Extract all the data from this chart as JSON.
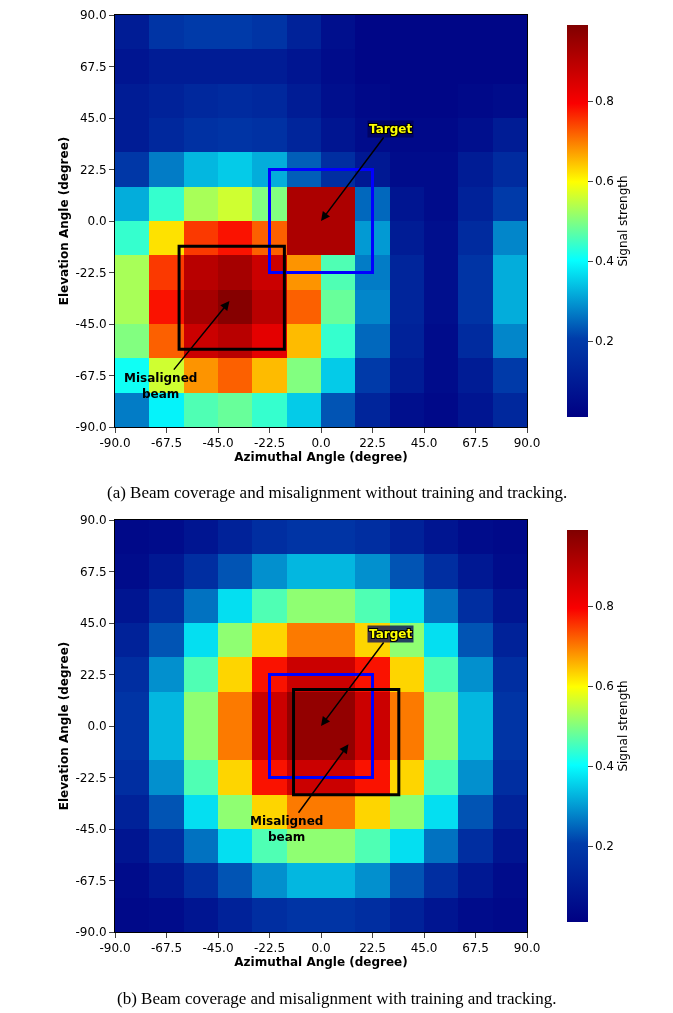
{
  "chart_data": [
    {
      "type": "heatmap",
      "xlabel": "Azimuthal Angle (degree)",
      "ylabel": "Elevation Angle (degree)",
      "clabel": "Signal strength",
      "x": [
        -82.5,
        -67.5,
        -52.5,
        -37.5,
        -22.5,
        -7.5,
        7.5,
        22.5,
        37.5,
        52.5,
        67.5,
        82.5
      ],
      "y": [
        82.5,
        67.5,
        52.5,
        37.5,
        22.5,
        7.5,
        -7.5,
        -22.5,
        -37.5,
        -52.5,
        -67.5,
        -82.5
      ],
      "cells": [
        [
          0.1,
          0.18,
          0.2,
          0.2,
          0.18,
          0.12,
          0.06,
          0.03,
          0.03,
          0.03,
          0.03,
          0.03
        ],
        [
          0.08,
          0.1,
          0.1,
          0.1,
          0.1,
          0.08,
          0.05,
          0.03,
          0.03,
          0.03,
          0.03,
          0.03
        ],
        [
          0.1,
          0.12,
          0.14,
          0.15,
          0.14,
          0.1,
          0.06,
          0.04,
          0.03,
          0.03,
          0.04,
          0.05
        ],
        [
          0.1,
          0.14,
          0.17,
          0.18,
          0.17,
          0.13,
          0.08,
          0.05,
          0.04,
          0.04,
          0.06,
          0.1
        ],
        [
          0.19,
          0.27,
          0.33,
          0.35,
          0.32,
          0.24,
          0.16,
          0.09,
          0.05,
          0.05,
          0.1,
          0.15
        ],
        [
          0.32,
          0.44,
          0.53,
          0.56,
          0.5,
          0.92,
          0.92,
          0.25,
          0.08,
          0.05,
          0.12,
          0.2
        ],
        [
          0.44,
          0.62,
          0.75,
          0.78,
          0.72,
          0.92,
          0.92,
          0.3,
          0.1,
          0.06,
          0.15,
          0.28
        ],
        [
          0.53,
          0.75,
          0.9,
          0.93,
          0.87,
          0.68,
          0.46,
          0.27,
          0.13,
          0.06,
          0.18,
          0.32
        ],
        [
          0.53,
          0.78,
          0.93,
          0.98,
          0.9,
          0.72,
          0.48,
          0.28,
          0.13,
          0.06,
          0.18,
          0.32
        ],
        [
          0.5,
          0.72,
          0.87,
          0.9,
          0.83,
          0.65,
          0.44,
          0.25,
          0.12,
          0.05,
          0.15,
          0.28
        ],
        [
          0.41,
          0.56,
          0.68,
          0.72,
          0.65,
          0.5,
          0.35,
          0.2,
          0.1,
          0.05,
          0.1,
          0.2
        ],
        [
          0.27,
          0.39,
          0.46,
          0.48,
          0.44,
          0.35,
          0.23,
          0.13,
          0.06,
          0.04,
          0.08,
          0.14
        ]
      ],
      "clim": [
        0.01,
        0.99
      ],
      "cticks": [
        0.2,
        0.4,
        0.6,
        0.8
      ],
      "xlim": [
        -90,
        90
      ],
      "ylim": [
        -90,
        90
      ],
      "xticks": [
        {
          "value": -90,
          "label": "-90.0"
        },
        {
          "value": -67.5,
          "label": "-67.5"
        },
        {
          "value": -45,
          "label": "-45.0"
        },
        {
          "value": -22.5,
          "label": "-22.5"
        },
        {
          "value": 0,
          "label": "0.0"
        },
        {
          "value": 22.5,
          "label": "22.5"
        },
        {
          "value": 45,
          "label": "45.0"
        },
        {
          "value": 67.5,
          "label": "67.5"
        },
        {
          "value": 90,
          "label": "90.0"
        }
      ],
      "yticks": [
        {
          "value": -90,
          "label": "-90.0"
        },
        {
          "value": -67.5,
          "label": "-67.5"
        },
        {
          "value": -45,
          "label": "-45.0"
        },
        {
          "value": -22.5,
          "label": "-22.5"
        },
        {
          "value": 0,
          "label": "0.0"
        },
        {
          "value": 22.5,
          "label": "22.5"
        },
        {
          "value": 45,
          "label": "45.0"
        },
        {
          "value": 67.5,
          "label": "67.5"
        },
        {
          "value": 90,
          "label": "90.0"
        }
      ],
      "annotations": [
        "Target",
        "Misaligned\nbeam",
        "(a) Beam coverage and misalignment without training and tracking."
      ]
    },
    {
      "type": "heatmap",
      "xlabel": "Azimuthal Angle (degree)",
      "ylabel": "Elevation Angle (degree)",
      "clabel": "Signal strength",
      "x": [
        -82.5,
        -67.5,
        -52.5,
        -37.5,
        -22.5,
        -7.5,
        7.5,
        22.5,
        37.5,
        52.5,
        67.5,
        82.5
      ],
      "y": [
        82.5,
        67.5,
        52.5,
        37.5,
        22.5,
        7.5,
        -7.5,
        -22.5,
        -37.5,
        -52.5,
        -67.5,
        -82.5
      ],
      "cells": [
        [
          0.04,
          0.05,
          0.08,
          0.12,
          0.16,
          0.18,
          0.18,
          0.16,
          0.12,
          0.08,
          0.05,
          0.04
        ],
        [
          0.05,
          0.09,
          0.16,
          0.23,
          0.29,
          0.33,
          0.33,
          0.29,
          0.23,
          0.16,
          0.09,
          0.05
        ],
        [
          0.08,
          0.16,
          0.26,
          0.37,
          0.46,
          0.51,
          0.51,
          0.46,
          0.37,
          0.26,
          0.16,
          0.08
        ],
        [
          0.12,
          0.23,
          0.37,
          0.51,
          0.63,
          0.7,
          0.7,
          0.63,
          0.51,
          0.37,
          0.23,
          0.12
        ],
        [
          0.16,
          0.29,
          0.46,
          0.63,
          0.78,
          0.87,
          0.87,
          0.78,
          0.63,
          0.46,
          0.29,
          0.16
        ],
        [
          0.18,
          0.33,
          0.51,
          0.7,
          0.87,
          0.96,
          0.96,
          0.87,
          0.7,
          0.51,
          0.33,
          0.18
        ],
        [
          0.18,
          0.33,
          0.51,
          0.7,
          0.87,
          0.96,
          0.96,
          0.87,
          0.7,
          0.51,
          0.33,
          0.18
        ],
        [
          0.16,
          0.29,
          0.46,
          0.63,
          0.78,
          0.87,
          0.87,
          0.78,
          0.63,
          0.46,
          0.29,
          0.16
        ],
        [
          0.12,
          0.23,
          0.37,
          0.51,
          0.63,
          0.7,
          0.7,
          0.63,
          0.51,
          0.37,
          0.23,
          0.12
        ],
        [
          0.08,
          0.16,
          0.26,
          0.37,
          0.46,
          0.51,
          0.51,
          0.46,
          0.37,
          0.26,
          0.16,
          0.08
        ],
        [
          0.05,
          0.09,
          0.16,
          0.23,
          0.29,
          0.33,
          0.33,
          0.29,
          0.23,
          0.16,
          0.09,
          0.05
        ],
        [
          0.04,
          0.05,
          0.08,
          0.12,
          0.16,
          0.18,
          0.18,
          0.16,
          0.12,
          0.08,
          0.05,
          0.04
        ]
      ],
      "clim": [
        0.01,
        0.99
      ],
      "cticks": [
        0.2,
        0.4,
        0.6,
        0.8
      ],
      "xlim": [
        -90,
        90
      ],
      "ylim": [
        -90,
        90
      ],
      "xticks": [
        {
          "value": -90,
          "label": "-90.0"
        },
        {
          "value": -67.5,
          "label": "-67.5"
        },
        {
          "value": -45,
          "label": "-45.0"
        },
        {
          "value": -22.5,
          "label": "-22.5"
        },
        {
          "value": 0,
          "label": "0.0"
        },
        {
          "value": 22.5,
          "label": "22.5"
        },
        {
          "value": 45,
          "label": "45.0"
        },
        {
          "value": 67.5,
          "label": "67.5"
        },
        {
          "value": 90,
          "label": "90.0"
        }
      ],
      "yticks": [
        {
          "value": -90,
          "label": "-90.0"
        },
        {
          "value": -67.5,
          "label": "-67.5"
        },
        {
          "value": -45,
          "label": "-45.0"
        },
        {
          "value": -22.5,
          "label": "-22.5"
        },
        {
          "value": 0,
          "label": "0.0"
        },
        {
          "value": 22.5,
          "label": "22.5"
        },
        {
          "value": 45,
          "label": "45.0"
        },
        {
          "value": 67.5,
          "label": "67.5"
        },
        {
          "value": 90,
          "label": "90.0"
        }
      ],
      "annotations": [
        "Target",
        "Misaligned\nbeam",
        "(b) Beam coverage and misalignment with training and tracking."
      ]
    }
  ]
}
